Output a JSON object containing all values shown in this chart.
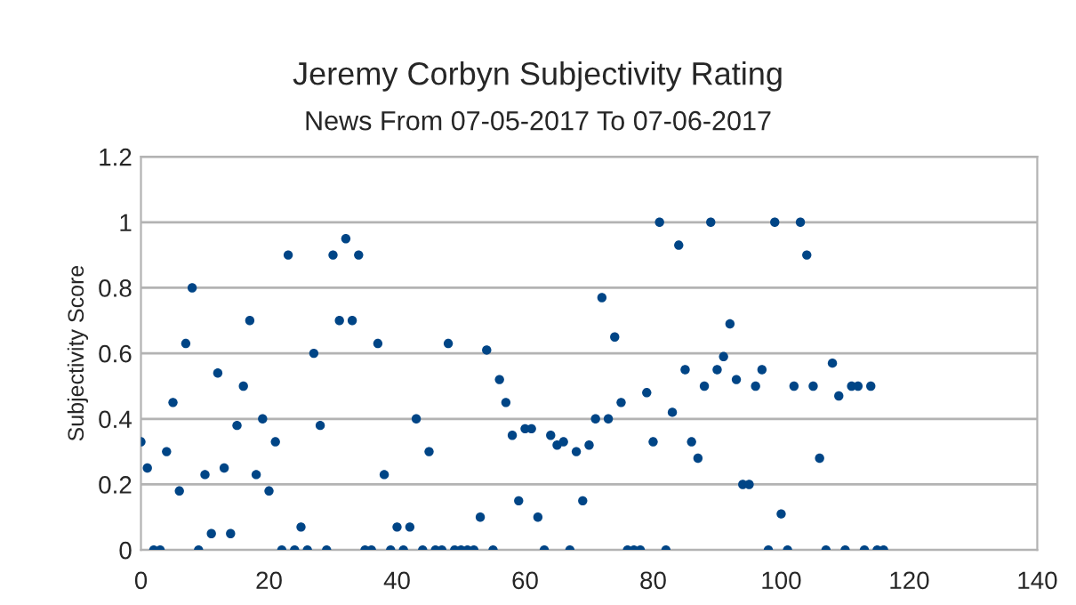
{
  "chart_data": {
    "type": "scatter",
    "title": "Jeremy Corbyn Subjectivity Rating",
    "subtitle": "News From 07-05-2017 To 07-06-2017",
    "ylabel": "Subjectivity Score",
    "x": [
      0,
      1,
      2,
      3,
      4,
      5,
      6,
      7,
      8,
      9,
      10,
      11,
      12,
      13,
      14,
      15,
      16,
      17,
      18,
      19,
      20,
      21,
      22,
      23,
      24,
      25,
      26,
      27,
      28,
      29,
      30,
      31,
      32,
      33,
      34,
      35,
      36,
      37,
      38,
      39,
      40,
      41,
      42,
      43,
      44,
      45,
      46,
      47,
      48,
      49,
      50,
      51,
      52,
      53,
      54,
      55,
      56,
      57,
      58,
      59,
      60,
      61,
      62,
      63,
      64,
      65,
      66,
      67,
      68,
      69,
      70,
      71,
      72,
      73,
      74,
      75,
      76,
      77,
      78,
      79,
      80,
      81,
      82,
      83,
      84,
      85,
      86,
      87,
      88,
      89,
      90,
      91,
      92,
      93,
      94,
      95,
      96,
      97,
      98,
      99,
      100,
      101,
      102,
      103,
      104,
      105,
      106,
      107,
      108,
      109,
      110,
      111,
      112,
      113,
      114,
      115,
      116
    ],
    "series": [
      {
        "color": "#004586",
        "values": [
          0.33,
          0.25,
          0,
          0,
          0.3,
          0.45,
          0.18,
          0.63,
          0.8,
          0,
          0.23,
          0.05,
          0.54,
          0.25,
          0.05,
          0.38,
          0.5,
          0.7,
          0.23,
          0.4,
          0.18,
          0.33,
          0,
          0.9,
          0,
          0.07,
          0,
          0.6,
          0.38,
          0,
          0.9,
          0.7,
          0.95,
          0.7,
          0.9,
          0,
          0,
          0.63,
          0.23,
          0,
          0.07,
          0,
          0.07,
          0.4,
          0,
          0.3,
          0,
          0,
          0.63,
          0,
          0,
          0,
          0,
          0.1,
          0.61,
          0,
          0.52,
          0.45,
          0.35,
          0.15,
          0.37,
          0.37,
          0.1,
          0,
          0.35,
          0.32,
          0.33,
          0,
          0.3,
          0.15,
          0.32,
          0.4,
          0.77,
          0.4,
          0.65,
          0.45,
          0,
          0,
          0,
          0.48,
          0.33,
          1,
          0,
          0.42,
          0.93,
          0.55,
          0.33,
          0.28,
          0.5,
          1,
          0.55,
          0.59,
          0.69,
          0.52,
          0.2,
          0.2,
          0.5,
          0.55,
          0,
          1,
          0.11,
          0,
          0.5,
          1,
          0.9,
          0.5,
          0.28,
          0,
          0.57,
          0.47,
          0,
          0.5,
          0.5,
          0,
          0.5,
          0,
          0
        ]
      }
    ],
    "xlim": [
      0,
      140
    ],
    "xticks": [
      0,
      20,
      40,
      60,
      80,
      100,
      120,
      140
    ],
    "ylim": [
      0,
      1.2
    ],
    "yticks": [
      0,
      {
        "value": 0.2,
        "label": "0.2"
      },
      {
        "value": 0.4,
        "label": "0.4"
      },
      {
        "value": 0.6,
        "label": "0.6"
      },
      {
        "value": 0.8,
        "label": "0.8"
      },
      1,
      {
        "value": 1.2,
        "label": "1.2"
      }
    ],
    "grid": "y",
    "marker": "circle"
  }
}
